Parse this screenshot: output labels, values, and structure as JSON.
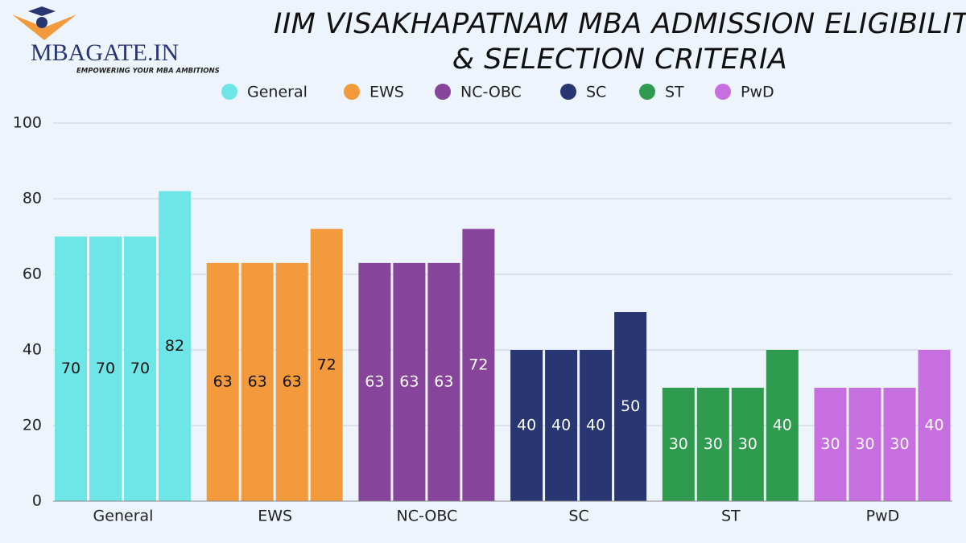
{
  "logo": {
    "name": "MBAGATE.IN",
    "tagline": "EMPOWERING YOUR MBA AMBITIONS"
  },
  "chart_data": {
    "type": "bar",
    "title": [
      "IIM VISAKHAPATNAM MBA ADMISSION ELIGIBILITY",
      "& SELECTION CRITERIA"
    ],
    "series": [
      {
        "name": "General",
        "color": "#6ee6e8",
        "values": [
          70,
          70,
          70,
          82
        ]
      },
      {
        "name": "EWS",
        "color": "#f39a3c",
        "values": [
          63,
          63,
          63,
          72
        ]
      },
      {
        "name": "NC-OBC",
        "color": "#86449a",
        "values": [
          63,
          63,
          63,
          72
        ]
      },
      {
        "name": "SC",
        "color": "#283672",
        "values": [
          40,
          40,
          40,
          50
        ]
      },
      {
        "name": "ST",
        "color": "#2e9b4f",
        "values": [
          30,
          30,
          30,
          40
        ]
      },
      {
        "name": "PwD",
        "color": "#c76ee0",
        "values": [
          30,
          30,
          30,
          40
        ]
      }
    ],
    "ylim": [
      0,
      100
    ],
    "yticks": [
      0,
      20,
      40,
      60,
      80,
      100
    ],
    "grid": true,
    "legend": "top"
  }
}
